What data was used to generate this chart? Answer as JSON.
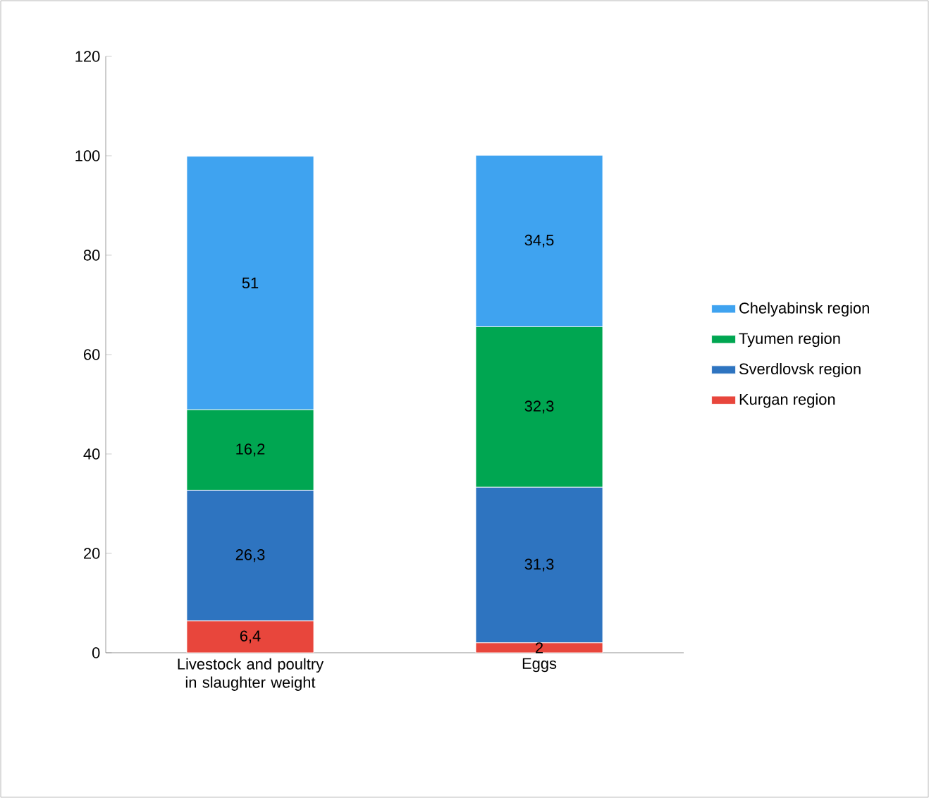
{
  "chart_data": {
    "type": "bar",
    "stacked": true,
    "categories": [
      "Livestock and poultry in slaughter weight",
      "Eggs"
    ],
    "series": [
      {
        "name": "Kurgan region",
        "color": "#e8463c",
        "values": [
          6.4,
          2
        ],
        "value_labels": [
          "6,4",
          "2"
        ]
      },
      {
        "name": "Sverdlovsk region",
        "color": "#2e74c0",
        "values": [
          26.3,
          31.3
        ],
        "value_labels": [
          "26,3",
          "31,3"
        ]
      },
      {
        "name": "Tyumen region",
        "color": "#00a651",
        "values": [
          16.2,
          32.3
        ],
        "value_labels": [
          "16,2",
          "32,3"
        ]
      },
      {
        "name": "Chelyabinsk region",
        "color": "#3fa3f0",
        "values": [
          51,
          34.5
        ],
        "value_labels": [
          "51",
          "34,5"
        ]
      }
    ],
    "ylim": [
      0,
      120
    ],
    "yticks": [
      0,
      20,
      40,
      60,
      80,
      100,
      120
    ],
    "legend": "right"
  }
}
